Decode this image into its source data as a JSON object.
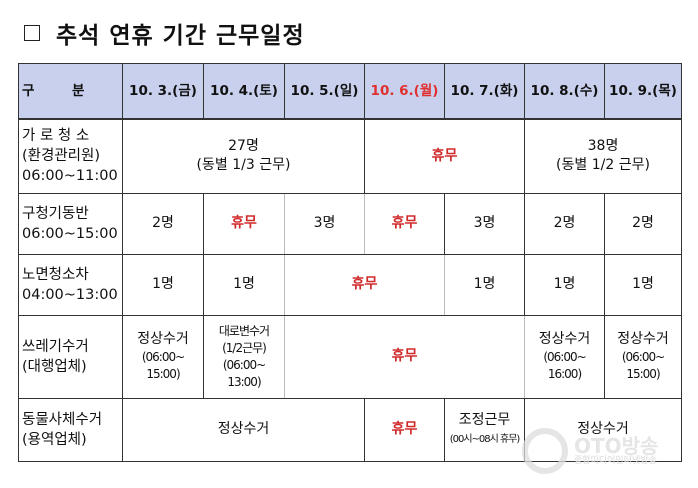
{
  "title": "추석 연휴 기간 근무일정",
  "header": {
    "category": "구        분",
    "dates": [
      "10. 3.(금)",
      "10. 4.(토)",
      "10. 5.(일)",
      "10. 6.(월)",
      "10. 7.(화)",
      "10. 8.(수)",
      "10. 9.(목)"
    ],
    "holiday_color": "#e03030"
  },
  "rows": [
    {
      "label": [
        "가 로 청 소",
        "(환경관리원)",
        "06:00~11:00"
      ],
      "cells": [
        [
          "27명",
          "(동별 1/3 근무)"
        ],
        [
          "휴무"
        ],
        [
          "38명",
          "(동별 1/2 근무)"
        ]
      ]
    },
    {
      "label": [
        "구청기동반",
        "06:00~15:00"
      ],
      "cells": [
        "2명",
        "휴무",
        "3명",
        "휴무",
        "3명",
        "2명",
        "2명"
      ]
    },
    {
      "label": [
        "노면청소차",
        "04:00~13:00"
      ],
      "cells": [
        "1명",
        "1명",
        "휴무",
        "1명",
        "1명",
        "1명"
      ]
    },
    {
      "label": [
        "쓰레기수거",
        "(대행업체)"
      ],
      "cells": [
        [
          "정상수거",
          "(06:00~",
          "15:00)"
        ],
        [
          "대로변수거",
          "(1/2근무)",
          "(06:00~",
          "13:00)"
        ],
        [
          "휴무"
        ],
        [
          "정상수거",
          "(06:00~",
          "16:00)"
        ],
        [
          "정상수거",
          "(06:00~",
          "15:00)"
        ]
      ]
    },
    {
      "label": [
        "동물사체수거",
        "(용역업체)"
      ],
      "cells": [
        "정상수거",
        "휴무",
        [
          "조정근무",
          "(00시~08시 휴무)"
        ],
        "정상수거"
      ]
    }
  ],
  "watermark": {
    "brand": "OTO방송",
    "tagline": "종합미디어인터넷방송"
  }
}
